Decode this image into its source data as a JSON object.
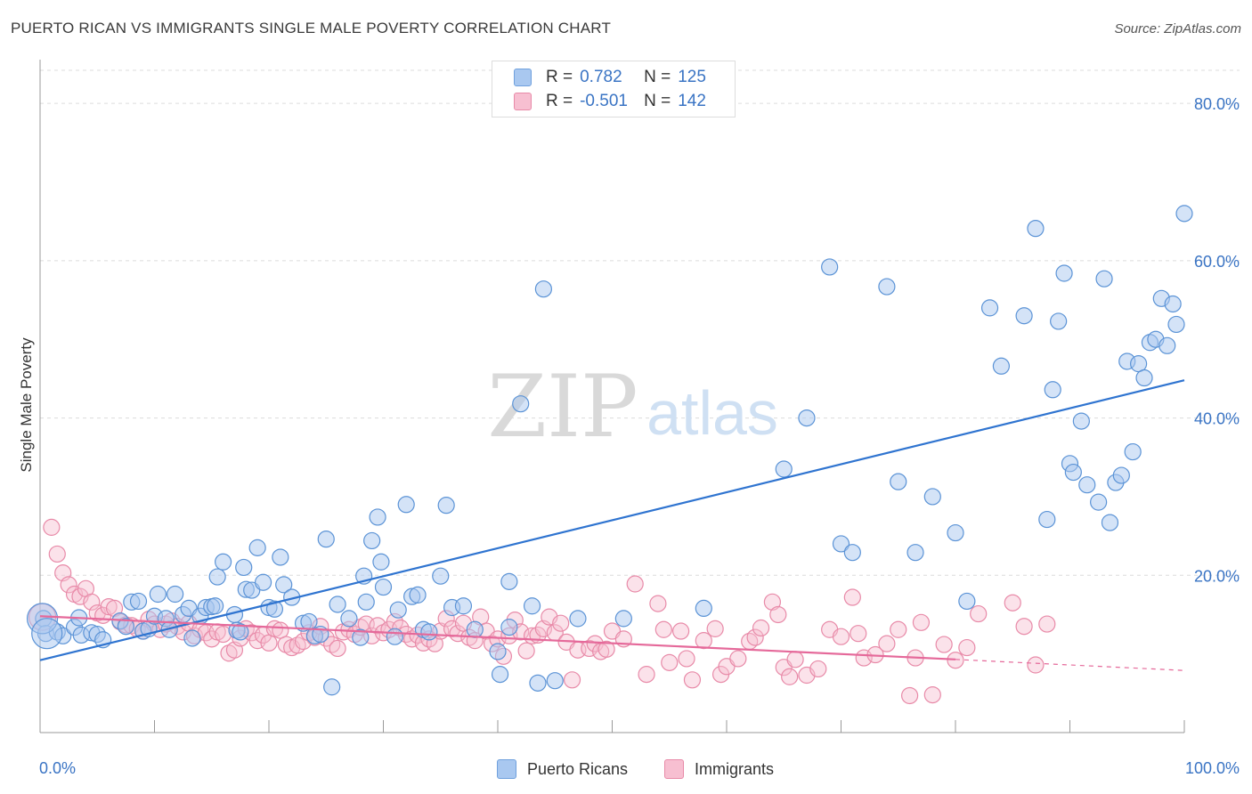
{
  "header": {
    "title": "PUERTO RICAN VS IMMIGRANTS SINGLE MALE POVERTY CORRELATION CHART",
    "source": "Source: ZipAtlas.com"
  },
  "watermark": {
    "zip": "ZIP",
    "atlas": "atlas"
  },
  "legend": {
    "series": [
      {
        "r_label": "R =",
        "r_value": "0.782",
        "n_label": "N =",
        "n_value": "125",
        "color": "#a9c8f0",
        "border": "#6fa0dd"
      },
      {
        "r_label": "R =",
        "r_value": "-0.501",
        "n_label": "N =",
        "n_value": "142",
        "color": "#f7bfd1",
        "border": "#e88aa8"
      }
    ]
  },
  "colors": {
    "blue_line": "#2f74d0",
    "pink_line": "#e5699a",
    "tick_text": "#3a74c4"
  },
  "chart_data": {
    "type": "scatter",
    "title": "PUERTO RICAN VS IMMIGRANTS SINGLE MALE POVERTY CORRELATION CHART",
    "xlabel": "",
    "ylabel": "Single Male Poverty",
    "xlim": [
      0,
      100
    ],
    "ylim": [
      0,
      85
    ],
    "x_tick_labels": [
      "0.0%",
      "100.0%"
    ],
    "y_ticks": [
      20,
      40,
      60,
      80
    ],
    "y_tick_labels": [
      "20.0%",
      "40.0%",
      "60.0%",
      "80.0%"
    ],
    "grid": "horizontal dashed",
    "legend_position": "top-center",
    "series": [
      {
        "name": "Puerto Ricans",
        "color": "#a9c8f0",
        "trend": {
          "x": [
            0,
            100
          ],
          "y": [
            9.2,
            44.8
          ]
        },
        "points": [
          [
            0.3,
            14.5
          ],
          [
            0.5,
            12.6
          ],
          [
            1.5,
            12.8
          ],
          [
            2,
            12.3
          ],
          [
            3,
            13.4
          ],
          [
            3.4,
            14.6
          ],
          [
            3.6,
            12.4
          ],
          [
            4.5,
            12.7
          ],
          [
            5,
            12.5
          ],
          [
            5.5,
            11.8
          ],
          [
            7,
            14.2
          ],
          [
            7.5,
            13.5
          ],
          [
            8,
            16.6
          ],
          [
            8.6,
            16.7
          ],
          [
            9,
            12.9
          ],
          [
            9.5,
            13.2
          ],
          [
            10,
            14.8
          ],
          [
            10.3,
            17.6
          ],
          [
            11,
            14.5
          ],
          [
            11.3,
            13.1
          ],
          [
            11.8,
            17.6
          ],
          [
            12.5,
            15
          ],
          [
            13,
            15.8
          ],
          [
            13.3,
            12
          ],
          [
            14,
            14.8
          ],
          [
            14.5,
            15.9
          ],
          [
            15,
            16
          ],
          [
            15.3,
            16.1
          ],
          [
            15.5,
            19.8
          ],
          [
            16,
            21.7
          ],
          [
            17,
            15
          ],
          [
            17.2,
            13
          ],
          [
            17.5,
            12.8
          ],
          [
            17.8,
            21
          ],
          [
            18,
            18.2
          ],
          [
            18.5,
            18.1
          ],
          [
            19,
            23.5
          ],
          [
            19.5,
            19.1
          ],
          [
            20,
            15.9
          ],
          [
            20.5,
            15.7
          ],
          [
            21,
            22.3
          ],
          [
            21.3,
            18.8
          ],
          [
            22,
            17.2
          ],
          [
            23,
            13.9
          ],
          [
            23.5,
            14.1
          ],
          [
            24,
            12.3
          ],
          [
            24.5,
            12.5
          ],
          [
            25,
            24.6
          ],
          [
            25.5,
            5.8
          ],
          [
            26,
            16.3
          ],
          [
            27,
            14.5
          ],
          [
            28,
            12.1
          ],
          [
            28.5,
            16.6
          ],
          [
            28.3,
            19.9
          ],
          [
            29,
            24.4
          ],
          [
            29.5,
            27.4
          ],
          [
            29.8,
            21.7
          ],
          [
            30,
            18.5
          ],
          [
            31,
            12.2
          ],
          [
            31.3,
            15.6
          ],
          [
            32,
            29
          ],
          [
            32.5,
            17.3
          ],
          [
            33,
            17.5
          ],
          [
            33.5,
            13.1
          ],
          [
            34,
            12.8
          ],
          [
            35,
            19.9
          ],
          [
            35.5,
            28.9
          ],
          [
            36,
            15.9
          ],
          [
            37,
            16.1
          ],
          [
            38,
            13.1
          ],
          [
            40,
            10.3
          ],
          [
            40.2,
            7.4
          ],
          [
            41,
            13.4
          ],
          [
            41,
            19.2
          ],
          [
            42,
            41.8
          ],
          [
            43,
            16.1
          ],
          [
            43.5,
            6.3
          ],
          [
            44,
            56.4
          ],
          [
            45,
            6.6
          ],
          [
            47,
            14.5
          ],
          [
            51,
            14.5
          ],
          [
            58,
            15.8
          ],
          [
            65,
            33.5
          ],
          [
            67,
            40
          ],
          [
            69,
            59.2
          ],
          [
            70,
            24
          ],
          [
            71,
            22.9
          ],
          [
            74,
            56.7
          ],
          [
            75,
            31.9
          ],
          [
            76.5,
            22.9
          ],
          [
            78,
            30
          ],
          [
            80,
            25.4
          ],
          [
            81,
            16.7
          ],
          [
            83,
            54
          ],
          [
            84,
            46.6
          ],
          [
            86,
            53
          ],
          [
            87,
            64.1
          ],
          [
            88,
            27.1
          ],
          [
            88.5,
            43.6
          ],
          [
            89,
            52.3
          ],
          [
            89.5,
            58.4
          ],
          [
            90,
            34.2
          ],
          [
            90.3,
            33.1
          ],
          [
            91,
            39.6
          ],
          [
            91.5,
            31.5
          ],
          [
            92.5,
            29.3
          ],
          [
            93,
            57.7
          ],
          [
            93.5,
            26.7
          ],
          [
            94,
            31.8
          ],
          [
            94.5,
            32.7
          ],
          [
            95,
            47.2
          ],
          [
            95.5,
            35.7
          ],
          [
            96,
            46.9
          ],
          [
            96.5,
            45.1
          ],
          [
            97,
            49.6
          ],
          [
            97.5,
            50
          ],
          [
            98,
            55.2
          ],
          [
            98.5,
            49.2
          ],
          [
            99,
            54.5
          ],
          [
            99.3,
            51.9
          ],
          [
            100,
            66
          ]
        ],
        "sizes_note": "two large points near x=0",
        "large_points": [
          [
            0.2,
            14.5
          ],
          [
            0.6,
            12.6
          ]
        ]
      },
      {
        "name": "Immigrants",
        "color": "#f7bfd1",
        "trend": {
          "x": [
            0,
            80
          ],
          "y": [
            14.8,
            9.3
          ],
          "dashed_extension": {
            "x": [
              80,
              100
            ],
            "y": [
              9.3,
              7.9
            ]
          }
        },
        "points": [
          [
            1,
            26.1
          ],
          [
            1.5,
            22.7
          ],
          [
            2,
            20.3
          ],
          [
            2.5,
            18.8
          ],
          [
            3,
            17.6
          ],
          [
            3.5,
            17.3
          ],
          [
            4,
            18.3
          ],
          [
            4.5,
            16.6
          ],
          [
            5,
            15.2
          ],
          [
            5.5,
            14.9
          ],
          [
            6,
            16
          ],
          [
            6.5,
            15.8
          ],
          [
            7,
            14.1
          ],
          [
            7.5,
            13.7
          ],
          [
            8,
            13.6
          ],
          [
            8.5,
            13.2
          ],
          [
            9,
            12.9
          ],
          [
            9.5,
            14.4
          ],
          [
            10,
            13.8
          ],
          [
            10.5,
            13.1
          ],
          [
            11,
            13.8
          ],
          [
            11.5,
            14.2
          ],
          [
            12,
            13.5
          ],
          [
            12.5,
            12.8
          ],
          [
            13,
            13.9
          ],
          [
            13.5,
            12.3
          ],
          [
            14,
            13.1
          ],
          [
            14.5,
            12.7
          ],
          [
            15,
            11.9
          ],
          [
            15.5,
            12.8
          ],
          [
            16,
            12.5
          ],
          [
            16.5,
            10.1
          ],
          [
            17,
            10.5
          ],
          [
            17.5,
            12
          ],
          [
            18,
            13.2
          ],
          [
            18.5,
            12.7
          ],
          [
            19,
            11.7
          ],
          [
            19.5,
            12.4
          ],
          [
            20,
            11.4
          ],
          [
            20.5,
            13.2
          ],
          [
            21,
            13
          ],
          [
            21.5,
            11.2
          ],
          [
            22,
            10.8
          ],
          [
            22.5,
            11.1
          ],
          [
            23,
            11.6
          ],
          [
            23.5,
            12.7
          ],
          [
            24,
            12.1
          ],
          [
            24.5,
            13.5
          ],
          [
            25,
            12
          ],
          [
            25.5,
            11.2
          ],
          [
            26,
            10.7
          ],
          [
            26.5,
            12.8
          ],
          [
            27,
            13.1
          ],
          [
            27.5,
            12.5
          ],
          [
            28,
            13.4
          ],
          [
            28.5,
            13.8
          ],
          [
            29,
            12.3
          ],
          [
            29.5,
            13.6
          ],
          [
            30,
            12.7
          ],
          [
            30.5,
            13.1
          ],
          [
            31,
            14.1
          ],
          [
            31.5,
            13.3
          ],
          [
            32,
            12.5
          ],
          [
            32.5,
            11.9
          ],
          [
            33,
            12.4
          ],
          [
            33.5,
            11.4
          ],
          [
            34,
            11.9
          ],
          [
            34.5,
            11.3
          ],
          [
            35,
            12.9
          ],
          [
            35.5,
            14.5
          ],
          [
            36,
            13.2
          ],
          [
            36.5,
            12.6
          ],
          [
            37,
            13.9
          ],
          [
            37.5,
            12.1
          ],
          [
            38,
            11.7
          ],
          [
            38.5,
            14.7
          ],
          [
            39,
            12.9
          ],
          [
            39.5,
            11.3
          ],
          [
            40,
            11.9
          ],
          [
            40.5,
            9.7
          ],
          [
            41,
            12.3
          ],
          [
            41.5,
            14.3
          ],
          [
            42,
            12.8
          ],
          [
            42.5,
            10.4
          ],
          [
            43,
            12.3
          ],
          [
            43.5,
            12.4
          ],
          [
            44,
            13.2
          ],
          [
            44.5,
            14.7
          ],
          [
            45,
            12.7
          ],
          [
            45.5,
            13.9
          ],
          [
            46,
            11.5
          ],
          [
            46.5,
            6.7
          ],
          [
            47,
            10.5
          ],
          [
            48,
            10.7
          ],
          [
            48.5,
            11.3
          ],
          [
            49,
            10.3
          ],
          [
            49.5,
            10.6
          ],
          [
            50,
            12.9
          ],
          [
            51,
            11.9
          ],
          [
            52,
            18.9
          ],
          [
            53,
            7.4
          ],
          [
            54,
            16.4
          ],
          [
            54.5,
            13.1
          ],
          [
            55,
            8.9
          ],
          [
            56,
            12.9
          ],
          [
            56.5,
            9.4
          ],
          [
            57,
            6.7
          ],
          [
            58,
            11.7
          ],
          [
            59,
            13.2
          ],
          [
            59.5,
            7.4
          ],
          [
            60,
            8.4
          ],
          [
            61,
            9.4
          ],
          [
            62,
            11.6
          ],
          [
            62.5,
            12.1
          ],
          [
            63,
            13.3
          ],
          [
            64,
            16.6
          ],
          [
            64.5,
            15
          ],
          [
            65,
            8.3
          ],
          [
            65.5,
            7.1
          ],
          [
            66,
            9.3
          ],
          [
            67,
            7.3
          ],
          [
            68,
            8.1
          ],
          [
            69,
            13.1
          ],
          [
            70,
            12.2
          ],
          [
            71,
            17.2
          ],
          [
            71.5,
            12.6
          ],
          [
            72,
            9.5
          ],
          [
            73,
            9.9
          ],
          [
            74,
            11.3
          ],
          [
            75,
            13.1
          ],
          [
            76,
            4.7
          ],
          [
            76.5,
            9.5
          ],
          [
            77,
            14
          ],
          [
            78,
            4.8
          ],
          [
            79,
            11.2
          ],
          [
            80,
            9.2
          ],
          [
            81,
            10.8
          ],
          [
            82,
            15.1
          ],
          [
            85,
            16.5
          ],
          [
            86,
            13.5
          ],
          [
            87,
            8.6
          ],
          [
            88,
            13.8
          ]
        ],
        "large_points": [
          [
            0.2,
            14.7
          ]
        ]
      }
    ]
  },
  "bottom_legend": [
    {
      "label": "Puerto Ricans",
      "color": "#a9c8f0",
      "border": "#6fa0dd"
    },
    {
      "label": "Immigrants",
      "color": "#f7bfd1",
      "border": "#e88aa8"
    }
  ]
}
